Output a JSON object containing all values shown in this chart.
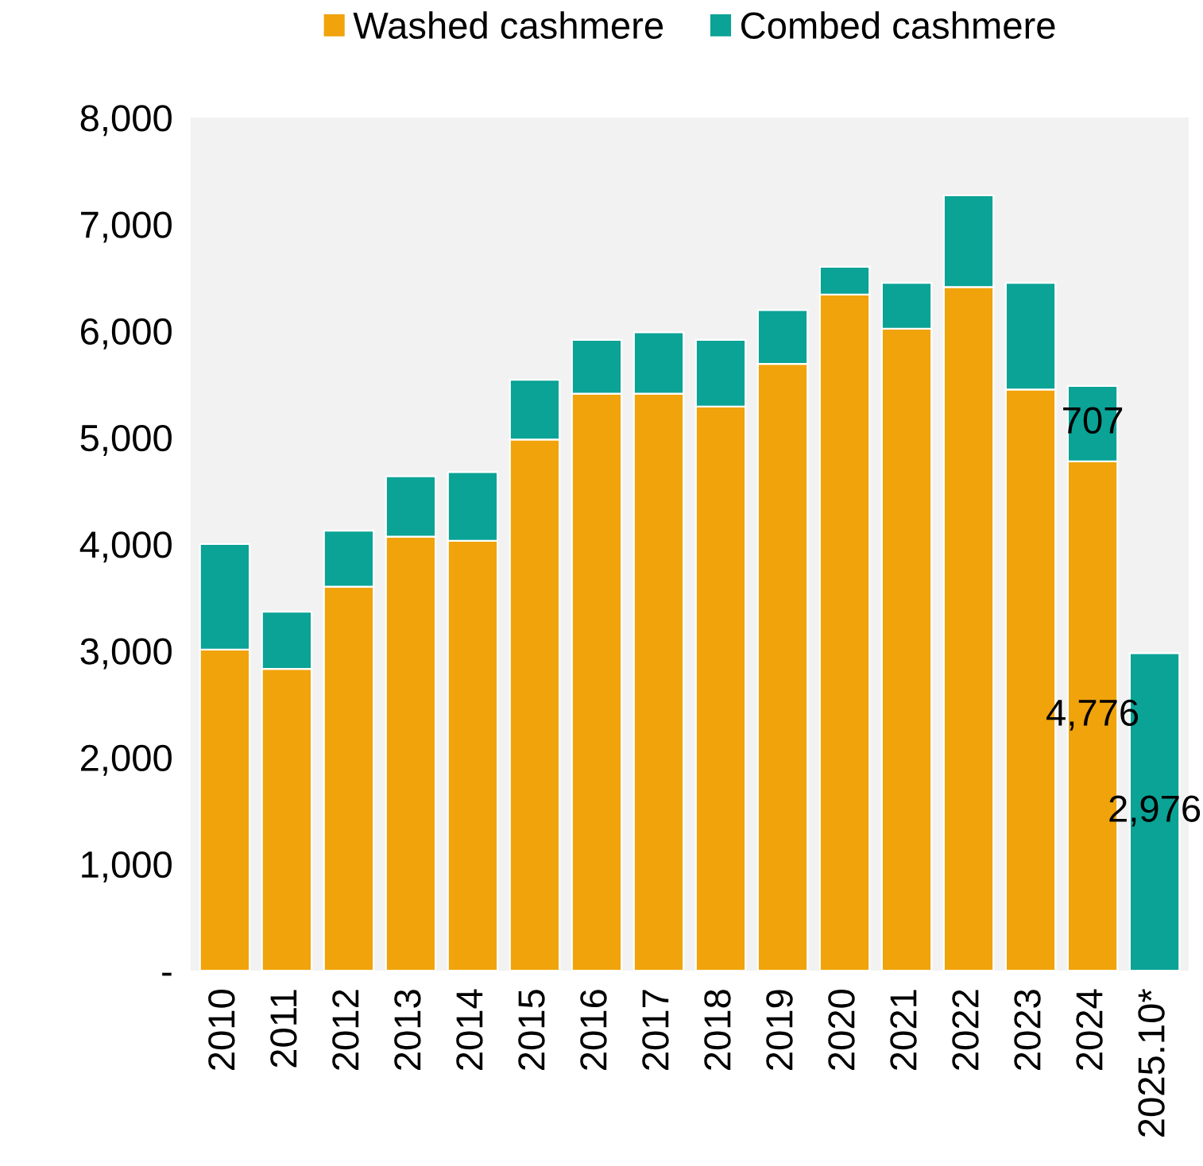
{
  "chart_data": {
    "type": "bar",
    "stacked": true,
    "categories": [
      "2010",
      "2011",
      "2012",
      "2013",
      "2014",
      "2015",
      "2016",
      "2017",
      "2018",
      "2019",
      "2020",
      "2021",
      "2022",
      "2023",
      "2024",
      "2025.10*"
    ],
    "series": [
      {
        "name": "Washed cashmere",
        "color": "#f0a30a",
        "values": [
          3010,
          2830,
          3600,
          4070,
          4030,
          4980,
          5410,
          5410,
          5290,
          5690,
          6340,
          6020,
          6410,
          5450,
          4776,
          null
        ],
        "value_labels": [
          null,
          null,
          null,
          null,
          null,
          null,
          null,
          null,
          null,
          null,
          null,
          null,
          null,
          null,
          "4,776",
          null
        ]
      },
      {
        "name": "Combed cashmere",
        "color": "#0aa396",
        "values": [
          990,
          535,
          525,
          565,
          645,
          560,
          505,
          575,
          625,
          505,
          260,
          430,
          860,
          1000,
          707,
          2976
        ],
        "value_labels": [
          null,
          null,
          null,
          null,
          null,
          null,
          null,
          null,
          null,
          null,
          null,
          null,
          null,
          null,
          "707",
          "2,976"
        ]
      }
    ],
    "ylim": [
      0,
      8000
    ],
    "yticks": [
      {
        "value": 0,
        "label": "-"
      },
      {
        "value": 1000,
        "label": "1,000"
      },
      {
        "value": 2000,
        "label": "2,000"
      },
      {
        "value": 3000,
        "label": "3,000"
      },
      {
        "value": 4000,
        "label": "4,000"
      },
      {
        "value": 5000,
        "label": "5,000"
      },
      {
        "value": 6000,
        "label": "6,000"
      },
      {
        "value": 7000,
        "label": "7,000"
      },
      {
        "value": 8000,
        "label": "8,000"
      }
    ],
    "grid": false,
    "legend": "top"
  }
}
